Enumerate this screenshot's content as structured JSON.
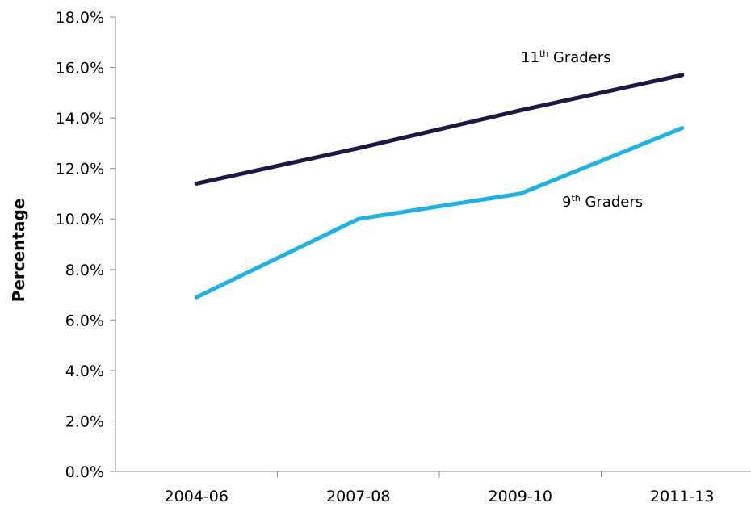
{
  "chart_data": {
    "type": "line",
    "title": "",
    "xlabel": "",
    "ylabel": "Percentage",
    "categories": [
      "2004-06",
      "2007-08",
      "2009-10",
      "2011-13"
    ],
    "ylim": [
      0,
      18
    ],
    "yticks": [
      "0.0%",
      "2.0%",
      "4.0%",
      "6.0%",
      "8.0%",
      "10.0%",
      "12.0%",
      "14.0%",
      "16.0%",
      "18.0%"
    ],
    "grid": false,
    "series": [
      {
        "name_prefix": "11",
        "name_sup": "th",
        "name_suffix": " Graders",
        "color": "#1f1547",
        "values": [
          11.4,
          12.8,
          14.3,
          15.7
        ]
      },
      {
        "name_prefix": "9",
        "name_sup": "th",
        "name_suffix": " Graders",
        "color": "#1ab2e8",
        "values": [
          6.9,
          10.0,
          11.0,
          13.6
        ]
      }
    ]
  }
}
